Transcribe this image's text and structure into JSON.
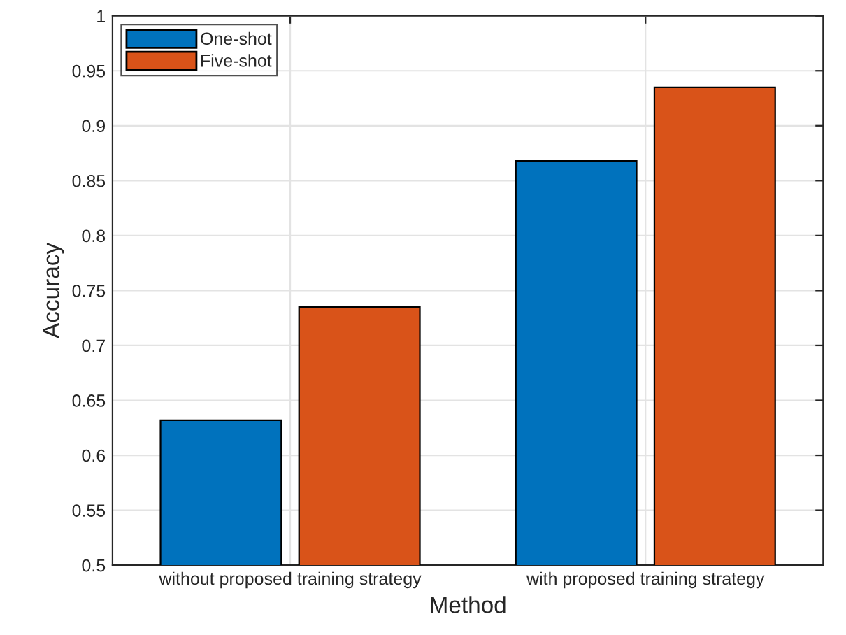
{
  "chart_data": {
    "type": "bar",
    "xlabel": "Method",
    "ylabel": "Accuracy",
    "categories": [
      "without proposed training strategy",
      "with proposed training strategy"
    ],
    "series": [
      {
        "name": "One-shot",
        "color": "#0072bd",
        "values": [
          0.632,
          0.868
        ]
      },
      {
        "name": "Five-shot",
        "color": "#d95319",
        "values": [
          0.735,
          0.935
        ]
      }
    ],
    "ylim": [
      0.5,
      1
    ],
    "yticks": [
      0.5,
      0.55,
      0.6,
      0.65,
      0.7,
      0.75,
      0.8,
      0.85,
      0.9,
      0.95,
      1
    ],
    "grid": true,
    "legend": "top left"
  }
}
